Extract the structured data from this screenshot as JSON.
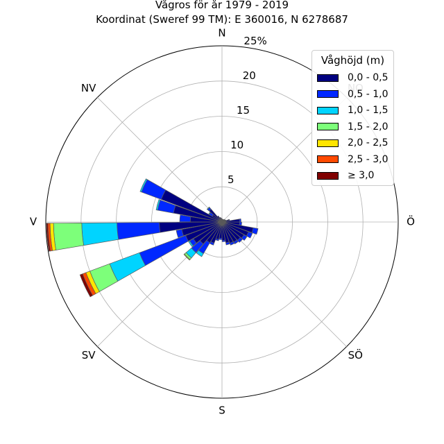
{
  "chart_data": {
    "type": "wind-rose",
    "title": "Vågros för år 1979 - 2019",
    "subtitle": "Koordinat (Sweref 99 TM): E 360016, N 6278687",
    "direction_labels": [
      "N",
      "NV",
      "V",
      "SV",
      "S",
      "SÖ",
      "Ö",
      "NO"
    ],
    "direction_angles": [
      90,
      135,
      180,
      225,
      270,
      315,
      0,
      45
    ],
    "radial_ticks": [
      "5",
      "10",
      "15",
      "20",
      "25%"
    ],
    "radial_tick_values": [
      5,
      10,
      15,
      20,
      25
    ],
    "rmax": 25,
    "sector_width_deg": 10,
    "legend_title": "Våghöjd (m)",
    "classes": [
      {
        "label": "0,0 - 0,5",
        "color": "#000080"
      },
      {
        "label": "0,5 - 1,0",
        "color": "#0028ff"
      },
      {
        "label": "1,0 - 1,5",
        "color": "#00d4ff"
      },
      {
        "label": "1,5 - 2,0",
        "color": "#7dff7a"
      },
      {
        "label": "2,0 - 2,5",
        "color": "#ffe500"
      },
      {
        "label": "2,5 - 3,0",
        "color": "#ff4a00"
      },
      {
        "label": "≥ 3,0",
        "color": "#800000"
      }
    ],
    "sectors": [
      {
        "angle": 5,
        "values": [
          2.5,
          0.2,
          0,
          0,
          0,
          0,
          0
        ]
      },
      {
        "angle": 15,
        "values": [
          1.0,
          0.1,
          0,
          0,
          0,
          0,
          0
        ]
      },
      {
        "angle": 25,
        "values": [
          0.6,
          0,
          0,
          0,
          0,
          0,
          0
        ]
      },
      {
        "angle": 35,
        "values": [
          0.5,
          0,
          0,
          0,
          0,
          0,
          0
        ]
      },
      {
        "angle": 45,
        "values": [
          0.5,
          0,
          0,
          0,
          0,
          0,
          0
        ]
      },
      {
        "angle": 55,
        "values": [
          0.4,
          0,
          0,
          0,
          0,
          0,
          0
        ]
      },
      {
        "angle": 65,
        "values": [
          0.4,
          0,
          0,
          0,
          0,
          0,
          0
        ]
      },
      {
        "angle": 75,
        "values": [
          0.4,
          0,
          0,
          0,
          0,
          0,
          0
        ]
      },
      {
        "angle": 85,
        "values": [
          0.4,
          0,
          0,
          0,
          0,
          0,
          0
        ]
      },
      {
        "angle": 95,
        "values": [
          0.5,
          0,
          0,
          0,
          0,
          0,
          0
        ]
      },
      {
        "angle": 105,
        "values": [
          0.6,
          0,
          0,
          0,
          0,
          0,
          0
        ]
      },
      {
        "angle": 115,
        "values": [
          0.7,
          0,
          0,
          0,
          0,
          0,
          0
        ]
      },
      {
        "angle": 125,
        "values": [
          1.0,
          0,
          0,
          0,
          0,
          0,
          0
        ]
      },
      {
        "angle": 135,
        "values": [
          2.4,
          0.3,
          0.1,
          0,
          0,
          0,
          0
        ]
      },
      {
        "angle": 145,
        "values": [
          1.6,
          0.5,
          0.1,
          0,
          0,
          0,
          0
        ]
      },
      {
        "angle": 155,
        "values": [
          9.2,
          3.0,
          0.2,
          0,
          0,
          0,
          0
        ]
      },
      {
        "angle": 165,
        "values": [
          7.0,
          2.3,
          0.2,
          0,
          0,
          0,
          0
        ]
      },
      {
        "angle": 175,
        "values": [
          4.5,
          1.5,
          0,
          0,
          0,
          0,
          0
        ]
      },
      {
        "angle": 185,
        "values": [
          8.9,
          6.0,
          5.0,
          4.0,
          0.5,
          0.3,
          0.2
        ]
      },
      {
        "angle": 195,
        "values": [
          5.8,
          0.8,
          0,
          0,
          0,
          0,
          0
        ]
      },
      {
        "angle": 205,
        "values": [
          5.5,
          7.0,
          4.5,
          3.0,
          0.6,
          0.5,
          0.4
        ]
      },
      {
        "angle": 215,
        "values": [
          4.7,
          0.6,
          0.2,
          0,
          0,
          0,
          0
        ]
      },
      {
        "angle": 225,
        "values": [
          4.1,
          1.6,
          1.0,
          0.3,
          0.1,
          0,
          0
        ]
      },
      {
        "angle": 235,
        "values": [
          3.4,
          1.8,
          0.5,
          0,
          0,
          0,
          0
        ]
      },
      {
        "angle": 245,
        "values": [
          3.2,
          0.3,
          0,
          0,
          0,
          0,
          0
        ]
      },
      {
        "angle": 255,
        "values": [
          2.5,
          0.2,
          0,
          0,
          0,
          0,
          0
        ]
      },
      {
        "angle": 265,
        "values": [
          2.3,
          0.2,
          0,
          0,
          0,
          0,
          0
        ]
      },
      {
        "angle": 275,
        "values": [
          2.6,
          0.2,
          0,
          0,
          0,
          0,
          0
        ]
      },
      {
        "angle": 285,
        "values": [
          3.0,
          0.3,
          0,
          0,
          0,
          0,
          0
        ]
      },
      {
        "angle": 295,
        "values": [
          3.2,
          0.3,
          0,
          0,
          0,
          0,
          0
        ]
      },
      {
        "angle": 305,
        "values": [
          3.3,
          0.3,
          0,
          0,
          0,
          0,
          0
        ]
      },
      {
        "angle": 315,
        "values": [
          3.4,
          0.4,
          0,
          0,
          0,
          0,
          0
        ]
      },
      {
        "angle": 325,
        "values": [
          3.6,
          0.5,
          0,
          0,
          0,
          0,
          0
        ]
      },
      {
        "angle": 335,
        "values": [
          4.0,
          0.6,
          0,
          0,
          0,
          0,
          0
        ]
      },
      {
        "angle": 345,
        "values": [
          4.5,
          0.7,
          0,
          0,
          0,
          0,
          0
        ]
      },
      {
        "angle": 355,
        "values": [
          2.5,
          0.3,
          0,
          0,
          0,
          0,
          0
        ]
      }
    ],
    "grid": true,
    "legend_position": "top-right"
  }
}
